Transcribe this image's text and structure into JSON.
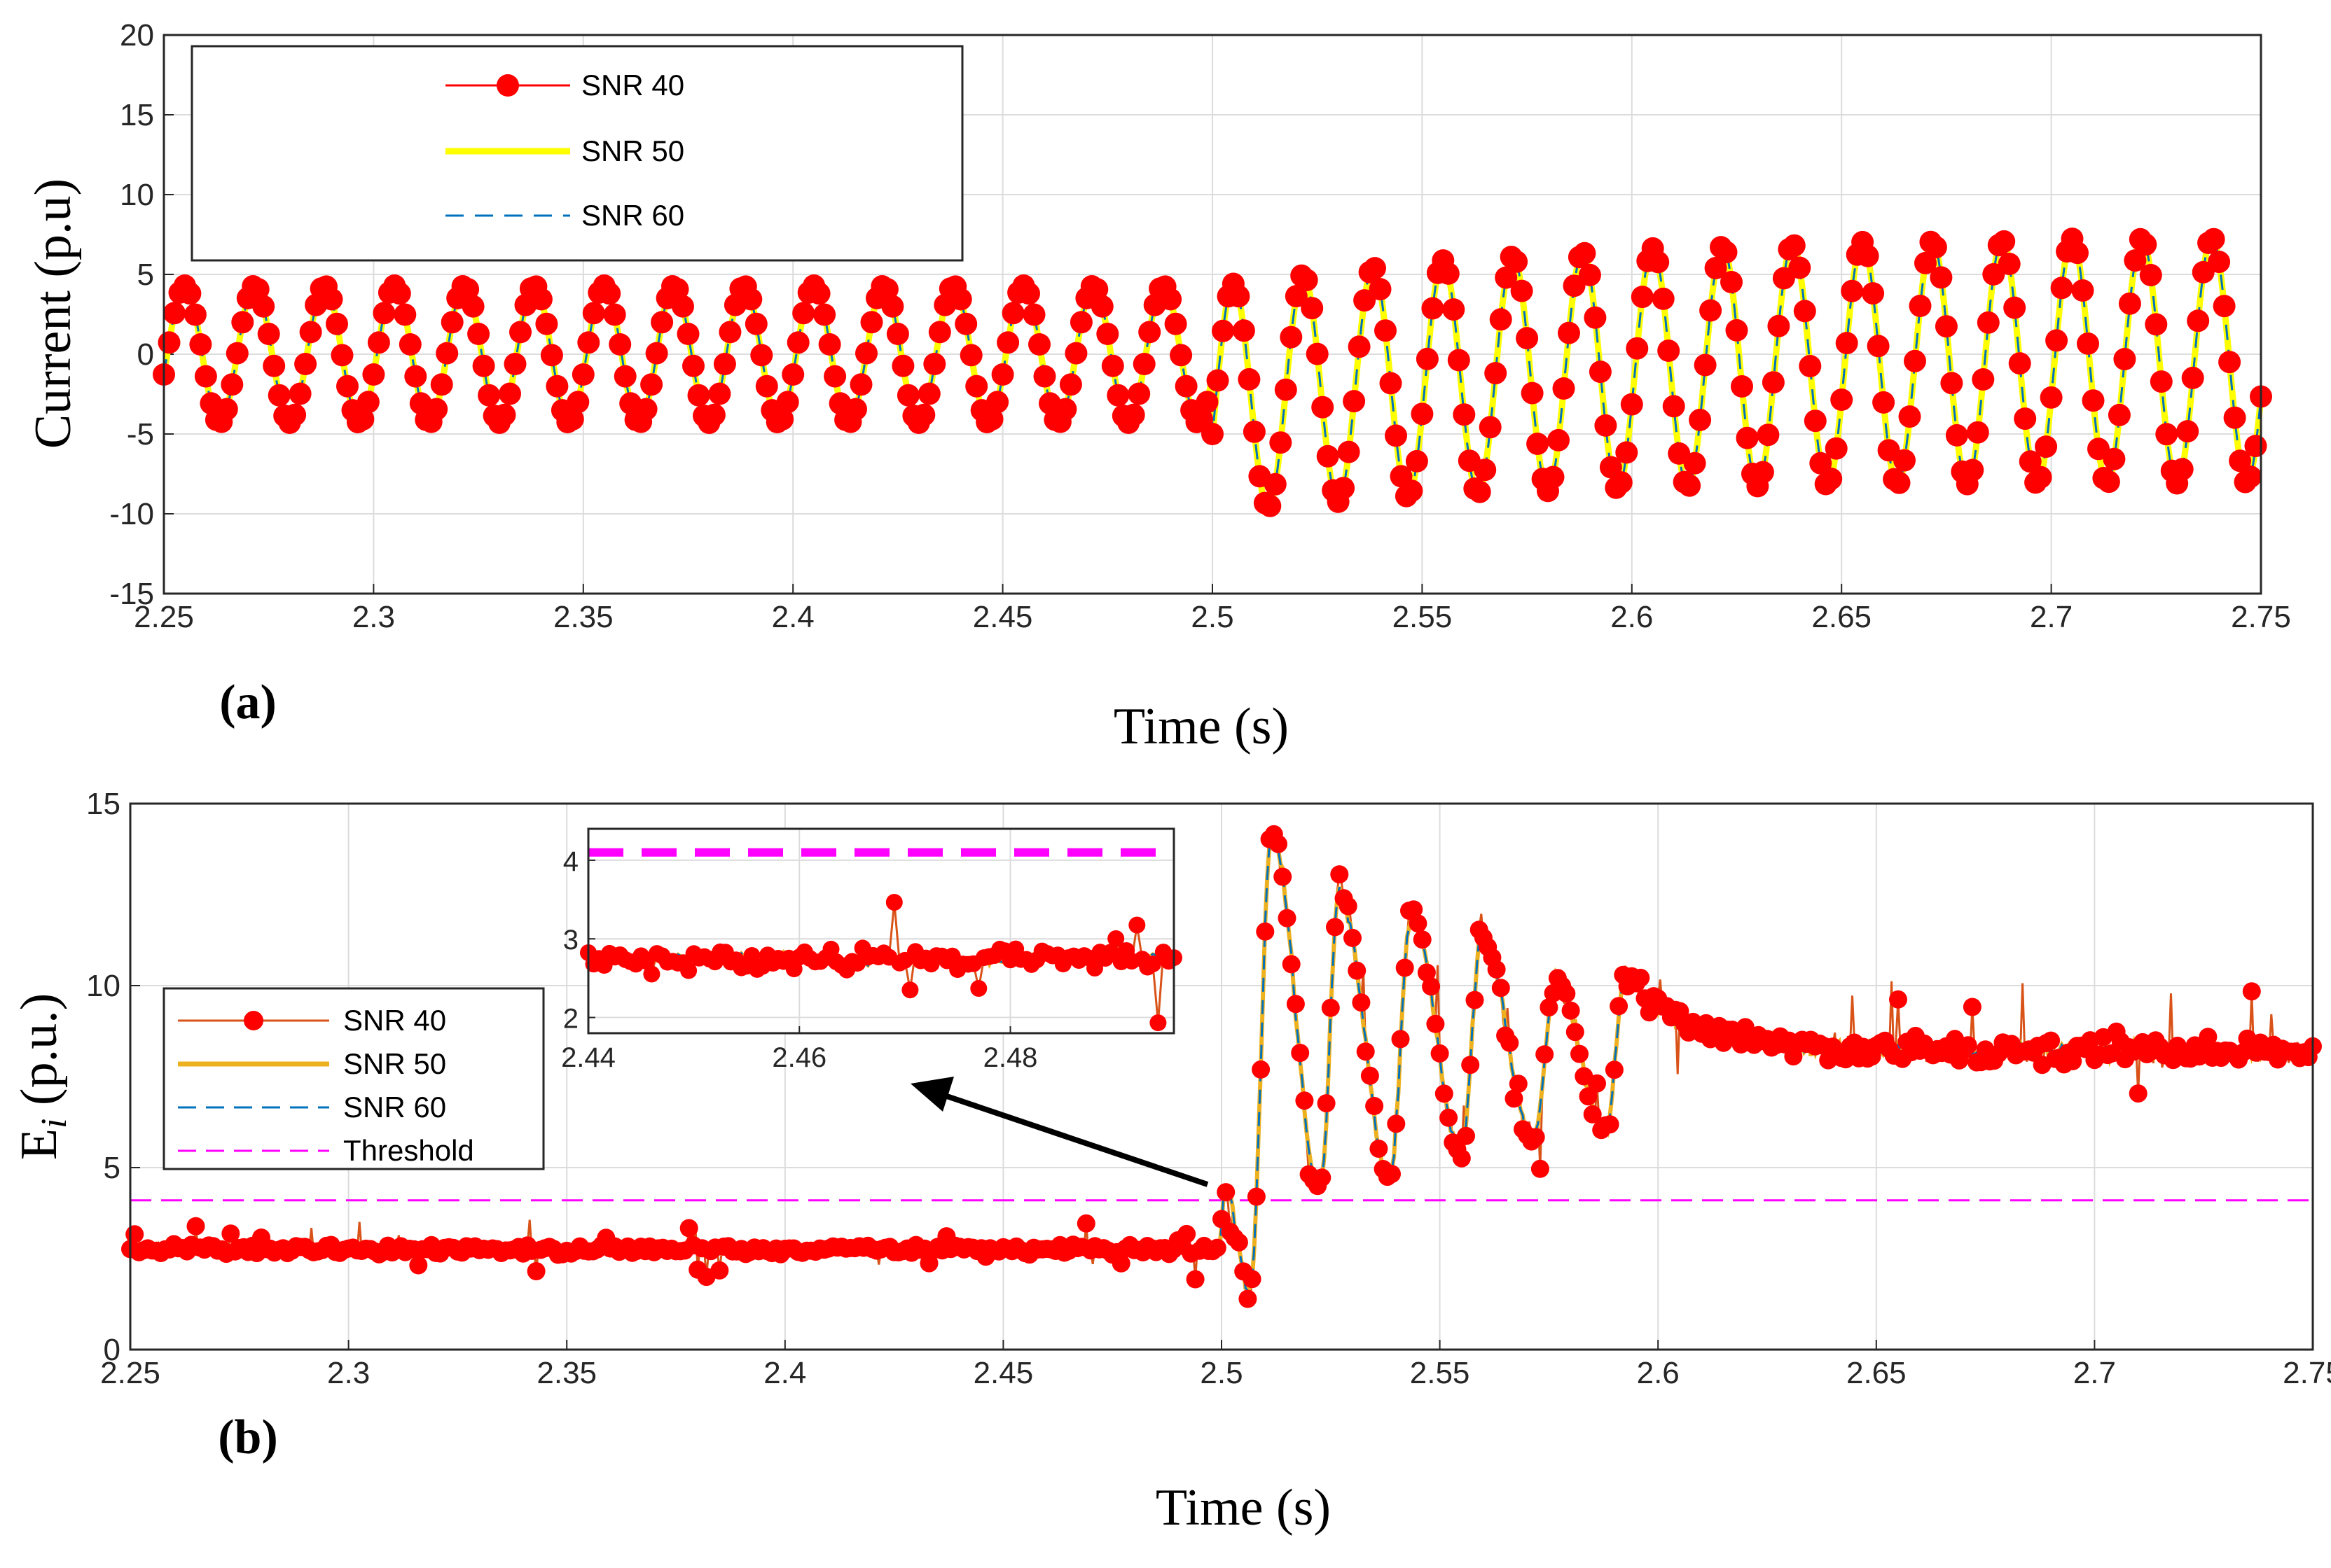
{
  "chart_data": [
    {
      "type": "line",
      "panel_label": "(a)",
      "xlabel": "Time (s)",
      "ylabel": "Current (p.u)",
      "xlim": [
        2.25,
        2.75
      ],
      "ylim": [
        -15,
        20
      ],
      "xticks": [
        "2.25",
        "2.3",
        "2.35",
        "2.4",
        "2.45",
        "2.5",
        "2.55",
        "2.6",
        "2.65",
        "2.7",
        "2.75"
      ],
      "yticks": [
        "-15",
        "-10",
        "-5",
        "0",
        "5",
        "10",
        "15",
        "20"
      ],
      "grid": true,
      "legend_position": "top-left",
      "series": [
        {
          "name": "SNR 40",
          "color": "#ff0000",
          "style": "solid-with-circle-markers"
        },
        {
          "name": "SNR 50",
          "color": "#ffff00",
          "style": "solid"
        },
        {
          "name": "SNR 60",
          "color": "#0072bd",
          "style": "dashed"
        }
      ],
      "signal": {
        "frequency_hz": 60,
        "pre_fault_amplitude": 4.3,
        "fault_time": 2.5,
        "post_fault_start_value": 2.4,
        "first_post_fault_minimum": -10.5,
        "post_fault_final_peak": 7.5,
        "post_fault_final_trough": -8
      }
    },
    {
      "type": "line",
      "panel_label": "(b)",
      "xlabel": "Time (s)",
      "ylabel": "Ei (p.u.)",
      "ylabel_main": "E",
      "ylabel_sub": "i",
      "ylabel_rest": " (p.u.)",
      "xlim": [
        2.25,
        2.75
      ],
      "ylim": [
        0,
        15
      ],
      "xticks": [
        "2.25",
        "2.3",
        "2.35",
        "2.4",
        "2.45",
        "2.5",
        "2.55",
        "2.6",
        "2.65",
        "2.7",
        "2.75"
      ],
      "yticks": [
        "0",
        "5",
        "10",
        "15"
      ],
      "grid": true,
      "legend_position": "middle-left",
      "threshold": 4.1,
      "series": [
        {
          "name": "SNR 40",
          "color": "#d95319",
          "marker_color": "#ff0000",
          "style": "solid-with-circle-markers"
        },
        {
          "name": "SNR 50",
          "color": "#edb120",
          "style": "solid"
        },
        {
          "name": "SNR 60",
          "color": "#0072bd",
          "style": "dashed"
        },
        {
          "name": "Threshold",
          "color": "#ff00ff",
          "style": "dashed"
        }
      ],
      "pre_fault_level": 2.75,
      "peaks": [
        {
          "x": 2.5007,
          "y": 4.4
        },
        {
          "x": 2.5065,
          "y": 1.6
        },
        {
          "x": 2.5115,
          "y": 14.2
        },
        {
          "x": 2.527,
          "y": 12.6
        },
        {
          "x": 2.5435,
          "y": 11.9
        },
        {
          "x": 2.5595,
          "y": 11.4
        },
        {
          "x": 2.5765,
          "y": 10.2
        },
        {
          "x": 2.5925,
          "y": 10.3
        }
      ],
      "troughs": [
        {
          "x": 2.5225,
          "y": 4.4
        },
        {
          "x": 2.5385,
          "y": 4.8
        },
        {
          "x": 2.555,
          "y": 5.4
        },
        {
          "x": 2.5715,
          "y": 5.8
        },
        {
          "x": 2.588,
          "y": 6.0
        }
      ],
      "steady_state_level": 8.2,
      "inset": {
        "xlim": [
          2.44,
          2.4955
        ],
        "ylim": [
          1.8,
          4.4
        ],
        "xticks": [
          "2.44",
          "2.46",
          "2.48"
        ],
        "yticks": [
          "2",
          "3",
          "4"
        ]
      }
    }
  ]
}
